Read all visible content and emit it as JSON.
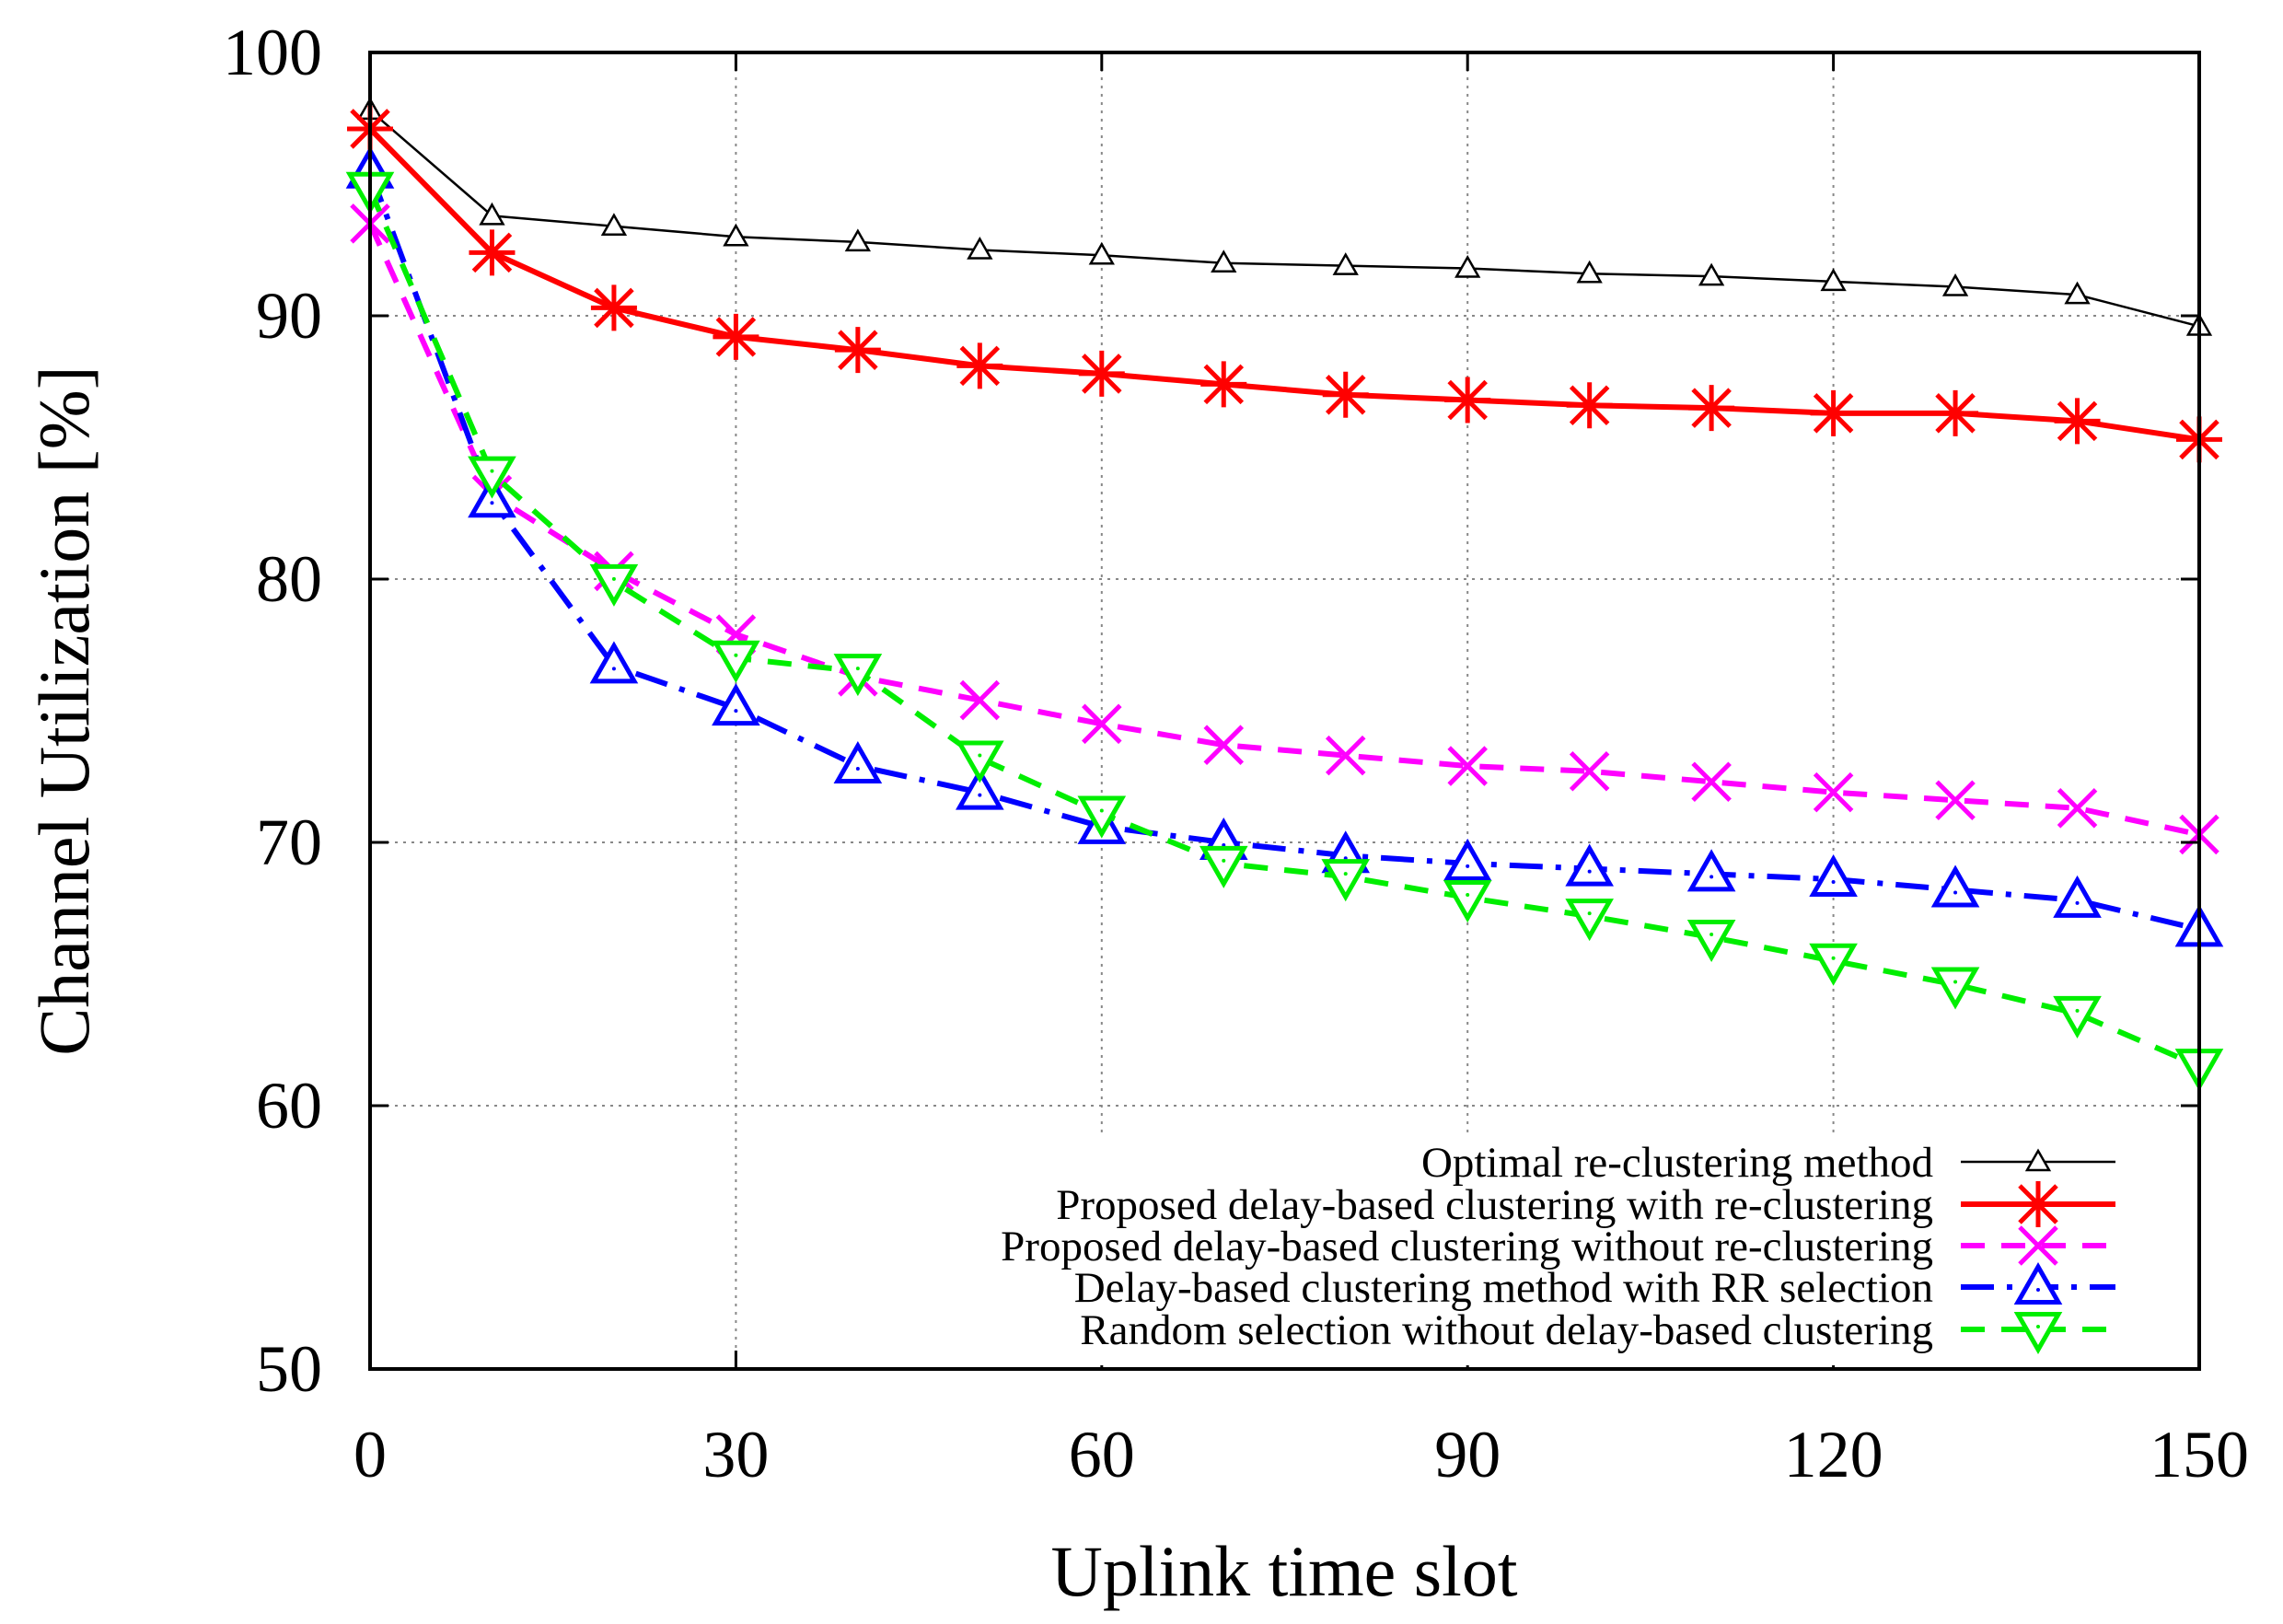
{
  "chart_data": {
    "type": "line",
    "title": "",
    "xlabel": "Uplink time slot",
    "ylabel": "Channel Utilization [%]",
    "xlim": [
      0,
      150
    ],
    "ylim": [
      50,
      100
    ],
    "xticks": [
      0,
      30,
      60,
      90,
      120,
      150
    ],
    "yticks": [
      50,
      60,
      70,
      80,
      90,
      100
    ],
    "grid": true,
    "legend_position": "bottom-right",
    "x": [
      0,
      10,
      20,
      30,
      40,
      50,
      60,
      70,
      80,
      90,
      100,
      110,
      120,
      130,
      140,
      150
    ],
    "series": [
      {
        "name": "Optimal re-clustering method",
        "color": "#000000",
        "marker": "triangle-up",
        "dash": "solid",
        "values": [
          97.8,
          93.8,
          93.4,
          93.0,
          92.8,
          92.5,
          92.3,
          92.0,
          91.9,
          91.8,
          91.6,
          91.5,
          91.3,
          91.1,
          90.8,
          89.6
        ]
      },
      {
        "name": "Proposed delay-based clustering with re-clustering",
        "color": "#ff0000",
        "marker": "star",
        "dash": "solid",
        "values": [
          97.1,
          92.4,
          90.3,
          89.2,
          88.7,
          88.1,
          87.8,
          87.4,
          87.0,
          86.8,
          86.6,
          86.5,
          86.3,
          86.3,
          86.0,
          85.3
        ]
      },
      {
        "name": "Proposed delay-based clustering without re-clustering",
        "color": "#ff00ff",
        "marker": "cross",
        "dash": "dashed",
        "values": [
          93.5,
          83.2,
          80.3,
          77.9,
          76.3,
          75.4,
          74.5,
          73.7,
          73.3,
          72.9,
          72.7,
          72.3,
          71.9,
          71.6,
          71.3,
          70.3
        ]
      },
      {
        "name": "Delay-based clustering method with RR selection",
        "color": "#0000ff",
        "marker": "triangle-up",
        "dash": "dashdot",
        "values": [
          95.5,
          83.0,
          76.7,
          75.1,
          72.9,
          71.9,
          70.6,
          70.0,
          69.5,
          69.2,
          69.0,
          68.8,
          68.6,
          68.2,
          67.8,
          66.7
        ]
      },
      {
        "name": "Random selection without delay-based clustering",
        "color": "#00ee00",
        "marker": "triangle-down",
        "dash": "dashed",
        "values": [
          94.8,
          84.0,
          79.9,
          77.0,
          76.5,
          73.2,
          71.1,
          69.2,
          68.7,
          67.9,
          67.2,
          66.4,
          65.5,
          64.6,
          63.5,
          61.5
        ]
      }
    ]
  }
}
